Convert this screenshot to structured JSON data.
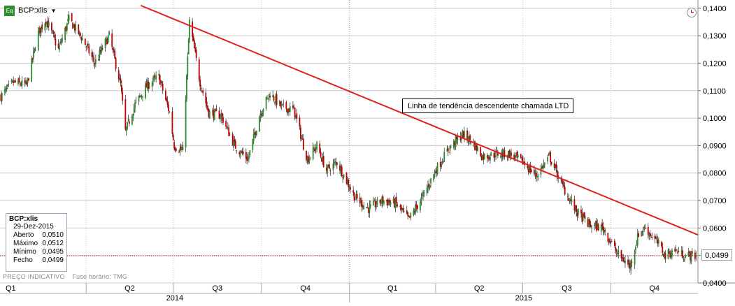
{
  "header": {
    "icon_label": "Eq",
    "ticker": "BCP:xlis"
  },
  "annotation": "Linha de tendência descendente chamada LTD",
  "info_box": {
    "title": "BCP:xlis",
    "date": "29-Dez-2015",
    "rows": [
      {
        "label": "Aberto",
        "value": "0,0510"
      },
      {
        "label": "Máximo",
        "value": "0,0512"
      },
      {
        "label": "Mínimo",
        "value": "0,0495"
      },
      {
        "label": "Fecho",
        "value": "0,0499"
      }
    ]
  },
  "footer_note": "PREÇO INDICATIVO    Fuso horário: TMG",
  "last_price_label": "0,0499",
  "colors": {
    "up": "#2e8b2e",
    "down": "#c00000",
    "trendline": "#e02020",
    "grid": "#c8c8c8",
    "last_price_line": "#c00000"
  },
  "chart_data": {
    "type": "candlestick",
    "title": "",
    "xlabel": "",
    "ylabel": "",
    "ylim": [
      0.04,
      0.143
    ],
    "y_ticks": [
      "0,0400",
      "0,0500",
      "0,0600",
      "0,0700",
      "0,0800",
      "0,0900",
      "0,1000",
      "0,1100",
      "0,1200",
      "0,1300",
      "0,1400"
    ],
    "y_tick_values": [
      0.04,
      0.05,
      0.06,
      0.07,
      0.08,
      0.09,
      0.1,
      0.11,
      0.12,
      0.13,
      0.14
    ],
    "x_range": [
      "2014-01-01",
      "2015-12-31"
    ],
    "quarters": [
      "Q1",
      "Q2",
      "Q3",
      "Q4",
      "Q1",
      "Q2",
      "Q3",
      "Q4"
    ],
    "years": [
      "2014",
      "2015"
    ],
    "grid": true,
    "trendline": {
      "label": "Linha de tendência descendente chamada LTD",
      "from": {
        "date": "2014-05-28",
        "value": 0.141
      },
      "to": {
        "date": "2015-12-31",
        "value": 0.0575
      }
    },
    "last_close": {
      "date": "2015-12-29",
      "open": 0.051,
      "high": 0.0512,
      "low": 0.0495,
      "close": 0.0499
    },
    "price_path": [
      [
        "2014-01-02",
        0.108
      ],
      [
        "2014-01-15",
        0.113
      ],
      [
        "2014-01-29",
        0.112
      ],
      [
        "2014-02-10",
        0.131
      ],
      [
        "2014-02-18",
        0.136
      ],
      [
        "2014-03-03",
        0.125
      ],
      [
        "2014-03-14",
        0.136
      ],
      [
        "2014-03-28",
        0.129
      ],
      [
        "2014-04-10",
        0.12
      ],
      [
        "2014-04-25",
        0.13
      ],
      [
        "2014-05-07",
        0.112
      ],
      [
        "2014-05-12",
        0.095
      ],
      [
        "2014-05-22",
        0.105
      ],
      [
        "2014-06-04",
        0.112
      ],
      [
        "2014-06-16",
        0.115
      ],
      [
        "2014-06-27",
        0.102
      ],
      [
        "2014-07-02",
        0.09
      ],
      [
        "2014-07-11",
        0.088
      ],
      [
        "2014-07-18",
        0.135
      ],
      [
        "2014-07-29",
        0.113
      ],
      [
        "2014-08-07",
        0.102
      ],
      [
        "2014-08-20",
        0.101
      ],
      [
        "2014-09-03",
        0.09
      ],
      [
        "2014-09-17",
        0.085
      ],
      [
        "2014-09-30",
        0.102
      ],
      [
        "2014-10-10",
        0.109
      ],
      [
        "2014-10-22",
        0.104
      ],
      [
        "2014-11-04",
        0.103
      ],
      [
        "2014-11-18",
        0.085
      ],
      [
        "2014-11-28",
        0.09
      ],
      [
        "2014-12-08",
        0.081
      ],
      [
        "2014-12-19",
        0.084
      ],
      [
        "2015-01-07",
        0.071
      ],
      [
        "2015-01-21",
        0.067
      ],
      [
        "2015-02-04",
        0.07
      ],
      [
        "2015-02-18",
        0.069
      ],
      [
        "2015-03-04",
        0.063
      ],
      [
        "2015-03-18",
        0.071
      ],
      [
        "2015-04-01",
        0.081
      ],
      [
        "2015-04-15",
        0.089
      ],
      [
        "2015-04-29",
        0.094
      ],
      [
        "2015-05-08",
        0.092
      ],
      [
        "2015-05-20",
        0.086
      ],
      [
        "2015-06-03",
        0.087
      ],
      [
        "2015-06-17",
        0.087
      ],
      [
        "2015-07-01",
        0.084
      ],
      [
        "2015-07-15",
        0.079
      ],
      [
        "2015-07-29",
        0.086
      ],
      [
        "2015-08-12",
        0.075
      ],
      [
        "2015-08-26",
        0.066
      ],
      [
        "2015-09-09",
        0.061
      ],
      [
        "2015-09-23",
        0.06
      ],
      [
        "2015-10-07",
        0.051
      ],
      [
        "2015-10-21",
        0.046
      ],
      [
        "2015-10-30",
        0.058
      ],
      [
        "2015-11-06",
        0.06
      ],
      [
        "2015-11-18",
        0.055
      ],
      [
        "2015-11-27",
        0.05
      ],
      [
        "2015-12-07",
        0.052
      ],
      [
        "2015-12-17",
        0.05
      ],
      [
        "2015-12-29",
        0.0499
      ]
    ]
  }
}
